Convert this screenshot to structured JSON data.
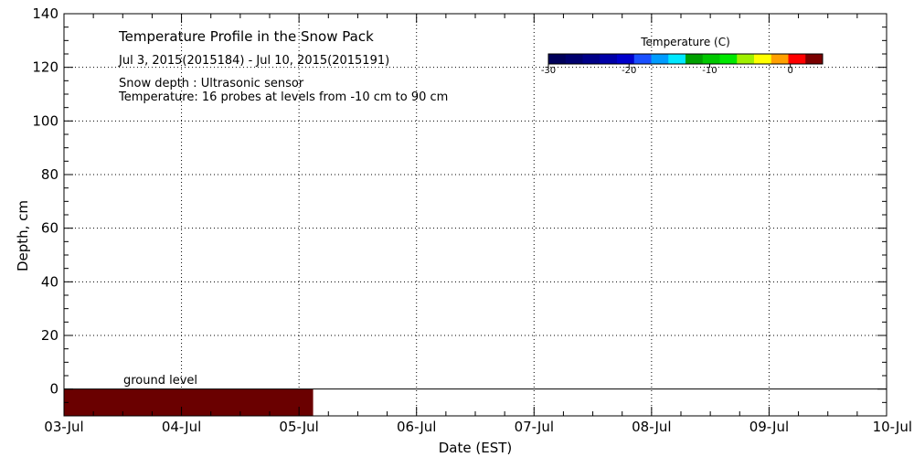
{
  "chart_data": {
    "type": "heatmap",
    "title": "Temperature Profile in the Snow Pack",
    "subtitle": "Jul  3, 2015(2015184) - Jul 10, 2015(2015191)",
    "notes": [
      "Snow depth : Ultrasonic sensor",
      "Temperature: 16 probes at levels from -10 cm to 90 cm"
    ],
    "xlabel": "Date (EST)",
    "ylabel": "Depth, cm",
    "x_ticks": [
      "03-Jul",
      "04-Jul",
      "05-Jul",
      "06-Jul",
      "07-Jul",
      "08-Jul",
      "09-Jul",
      "10-Jul"
    ],
    "xlim_days": [
      0,
      7
    ],
    "ylim": [
      -10,
      140
    ],
    "y_ticks": [
      0,
      20,
      40,
      60,
      80,
      100,
      120,
      140
    ],
    "grid": true,
    "ground_level": {
      "label": "ground level",
      "depth": 0
    },
    "cells": [
      {
        "x_start": "03-Jul",
        "x_end_day_offset": 2.12,
        "y_from": -10,
        "y_to": 0,
        "color": "#6a0000"
      }
    ],
    "colorbar": {
      "title": "Temperature (C)",
      "placement": "top-right",
      "range": [
        -30,
        4
      ],
      "ticks": [
        -30,
        -20,
        -10,
        0
      ],
      "tick_labels": [
        "-30",
        "-20",
        "-10",
        "0"
      ],
      "colors": [
        "#00005a",
        "#00006e",
        "#000088",
        "#0000a8",
        "#0000cc",
        "#1a50ff",
        "#009cff",
        "#00e8ff",
        "#00a000",
        "#00c800",
        "#00e800",
        "#a0f000",
        "#ffff00",
        "#ffa000",
        "#ff0000",
        "#7a0000"
      ]
    }
  }
}
